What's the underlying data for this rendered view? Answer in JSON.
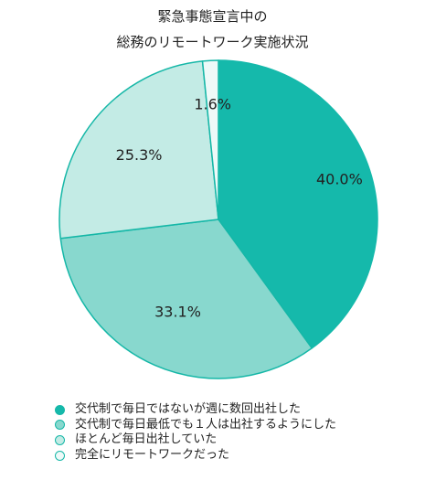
{
  "chart_data": {
    "type": "pie",
    "title_lines": [
      "緊急事態宣言中の",
      "総務のリモートワーク実施状況"
    ],
    "slices": [
      {
        "label": "交代制で毎日ではないが週に数回出社した",
        "value": 40.0,
        "display": "40.0%",
        "color": "#15b9ab"
      },
      {
        "label": "交代制で毎日最低でも１人は出社するようにした",
        "value": 33.1,
        "display": "33.1%",
        "color": "#88d8ce"
      },
      {
        "label": "ほとんど毎日出社していた",
        "value": 25.3,
        "display": "25.3%",
        "color": "#c3ebe5"
      },
      {
        "label": "完全にリモートワークだった",
        "value": 1.6,
        "display": "1.6%",
        "color": "#eef9f8"
      }
    ],
    "start_angle_deg": 0,
    "direction": "clockwise",
    "legend_position": "bottom-left",
    "outline_color": "#15b7a7"
  }
}
